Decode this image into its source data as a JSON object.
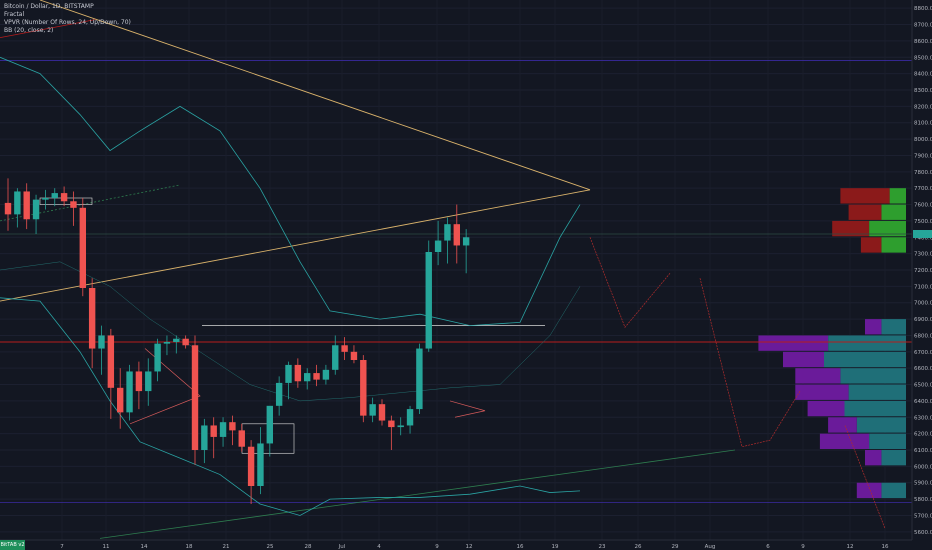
{
  "legend": {
    "title": "Bitcoin / Dollar, 1D, BITSTAMP",
    "line2": "Fractal",
    "line3": "VPVR (Number Of Rows, 24, Up/Down, 70)",
    "line4": "BB (20, close, 2)"
  },
  "bottom_tag": "BitTAB v2",
  "colors": {
    "background": "#131722",
    "up": "#26a69a",
    "down": "#ef5350",
    "bb": "#2aa3a3",
    "trend_orange": "#d9b26b",
    "hline_red": "#b71c1c",
    "vpvr_green": "#2e9e2e",
    "vpvr_red": "#8b1a1a",
    "vpvr_purple": "#6a1b9a",
    "vpvr_teal": "#1f6f78"
  },
  "chart_data": {
    "type": "candlestick",
    "y_ticks": [
      "8800.00",
      "8700.00",
      "8600.00",
      "8500.00",
      "8400.00",
      "8300.00",
      "8200.00",
      "8100.00",
      "8000.00",
      "7900.00",
      "7800.00",
      "7700.00",
      "7600.00",
      "7500.00",
      "7400.00",
      "7300.00",
      "7200.00",
      "7100.00",
      "7000.00",
      "6900.00",
      "6800.00",
      "6700.00",
      "6600.00",
      "6500.00",
      "6400.00",
      "6300.00",
      "6200.00",
      "6100.00",
      "6000.00",
      "5900.00",
      "5800.00",
      "5700.00",
      "5600.00"
    ],
    "x_ticks": [
      "7",
      "11",
      "14",
      "18",
      "21",
      "25",
      "28",
      "Jul",
      "4",
      "9",
      "12",
      "16",
      "19",
      "23",
      "26",
      "29",
      "Aug",
      "6",
      "9",
      "12",
      "16"
    ],
    "ylim": [
      5550,
      8850
    ],
    "candles": [
      {
        "o": 7610,
        "h": 7760,
        "l": 7440,
        "c": 7540
      },
      {
        "o": 7540,
        "h": 7700,
        "l": 7460,
        "c": 7680
      },
      {
        "o": 7680,
        "h": 7730,
        "l": 7450,
        "c": 7510
      },
      {
        "o": 7510,
        "h": 7660,
        "l": 7420,
        "c": 7630
      },
      {
        "o": 7630,
        "h": 7690,
        "l": 7570,
        "c": 7640
      },
      {
        "o": 7640,
        "h": 7700,
        "l": 7590,
        "c": 7670
      },
      {
        "o": 7670,
        "h": 7710,
        "l": 7590,
        "c": 7620
      },
      {
        "o": 7620,
        "h": 7680,
        "l": 7470,
        "c": 7580
      },
      {
        "o": 7580,
        "h": 7640,
        "l": 7040,
        "c": 7090
      },
      {
        "o": 7090,
        "h": 7150,
        "l": 6600,
        "c": 6720
      },
      {
        "o": 6720,
        "h": 6860,
        "l": 6560,
        "c": 6800
      },
      {
        "o": 6800,
        "h": 6840,
        "l": 6290,
        "c": 6480
      },
      {
        "o": 6480,
        "h": 6600,
        "l": 6230,
        "c": 6330
      },
      {
        "o": 6330,
        "h": 6620,
        "l": 6280,
        "c": 6580
      },
      {
        "o": 6580,
        "h": 6640,
        "l": 6350,
        "c": 6460
      },
      {
        "o": 6460,
        "h": 6660,
        "l": 6370,
        "c": 6580
      },
      {
        "o": 6580,
        "h": 6780,
        "l": 6520,
        "c": 6750
      },
      {
        "o": 6750,
        "h": 6800,
        "l": 6680,
        "c": 6760
      },
      {
        "o": 6760,
        "h": 6800,
        "l": 6690,
        "c": 6780
      },
      {
        "o": 6780,
        "h": 6800,
        "l": 6720,
        "c": 6740
      },
      {
        "o": 6740,
        "h": 6800,
        "l": 6010,
        "c": 6100
      },
      {
        "o": 6100,
        "h": 6290,
        "l": 6020,
        "c": 6250
      },
      {
        "o": 6250,
        "h": 6300,
        "l": 6050,
        "c": 6180
      },
      {
        "o": 6180,
        "h": 6300,
        "l": 6120,
        "c": 6270
      },
      {
        "o": 6270,
        "h": 6310,
        "l": 6130,
        "c": 6220
      },
      {
        "o": 6220,
        "h": 6260,
        "l": 6090,
        "c": 6120
      },
      {
        "o": 6120,
        "h": 6160,
        "l": 5770,
        "c": 5880
      },
      {
        "o": 5880,
        "h": 6240,
        "l": 5830,
        "c": 6140
      },
      {
        "o": 6140,
        "h": 6340,
        "l": 6060,
        "c": 6370
      },
      {
        "o": 6370,
        "h": 6550,
        "l": 6310,
        "c": 6510
      },
      {
        "o": 6510,
        "h": 6640,
        "l": 6410,
        "c": 6620
      },
      {
        "o": 6620,
        "h": 6660,
        "l": 6480,
        "c": 6520
      },
      {
        "o": 6520,
        "h": 6600,
        "l": 6470,
        "c": 6570
      },
      {
        "o": 6570,
        "h": 6620,
        "l": 6490,
        "c": 6530
      },
      {
        "o": 6530,
        "h": 6620,
        "l": 6500,
        "c": 6590
      },
      {
        "o": 6590,
        "h": 6800,
        "l": 6560,
        "c": 6740
      },
      {
        "o": 6740,
        "h": 6790,
        "l": 6650,
        "c": 6700
      },
      {
        "o": 6700,
        "h": 6740,
        "l": 6630,
        "c": 6650
      },
      {
        "o": 6650,
        "h": 6680,
        "l": 6270,
        "c": 6310
      },
      {
        "o": 6310,
        "h": 6420,
        "l": 6270,
        "c": 6380
      },
      {
        "o": 6380,
        "h": 6410,
        "l": 6250,
        "c": 6280
      },
      {
        "o": 6280,
        "h": 6310,
        "l": 6100,
        "c": 6240
      },
      {
        "o": 6240,
        "h": 6300,
        "l": 6190,
        "c": 6250
      },
      {
        "o": 6250,
        "h": 6370,
        "l": 6200,
        "c": 6350
      },
      {
        "o": 6350,
        "h": 6750,
        "l": 6320,
        "c": 6720
      },
      {
        "o": 6720,
        "h": 7380,
        "l": 6700,
        "c": 7310
      },
      {
        "o": 7310,
        "h": 7500,
        "l": 7230,
        "c": 7380
      },
      {
        "o": 7380,
        "h": 7520,
        "l": 7240,
        "c": 7480
      },
      {
        "o": 7480,
        "h": 7600,
        "l": 7240,
        "c": 7350
      },
      {
        "o": 7350,
        "h": 7450,
        "l": 7180,
        "c": 7400
      }
    ],
    "vpvr": [
      {
        "price": 7750,
        "up": 0,
        "down": 0
      },
      {
        "price": 7650,
        "up": 20,
        "down": 60
      },
      {
        "price": 7550,
        "up": 30,
        "down": 40
      },
      {
        "price": 7450,
        "up": 45,
        "down": 45
      },
      {
        "price": 7350,
        "up": 30,
        "down": 25
      },
      {
        "price": 6850,
        "up": 30,
        "down": 20
      },
      {
        "price": 6750,
        "up": 95,
        "down": 85
      },
      {
        "price": 6650,
        "up": 100,
        "down": 50
      },
      {
        "price": 6550,
        "up": 80,
        "down": 55
      },
      {
        "price": 6450,
        "up": 70,
        "down": 65
      },
      {
        "price": 6350,
        "up": 75,
        "down": 45
      },
      {
        "price": 6250,
        "up": 60,
        "down": 35
      },
      {
        "price": 6150,
        "up": 45,
        "down": 60
      },
      {
        "price": 6050,
        "up": 30,
        "down": 20
      },
      {
        "price": 5850,
        "up": 30,
        "down": 30
      }
    ]
  }
}
